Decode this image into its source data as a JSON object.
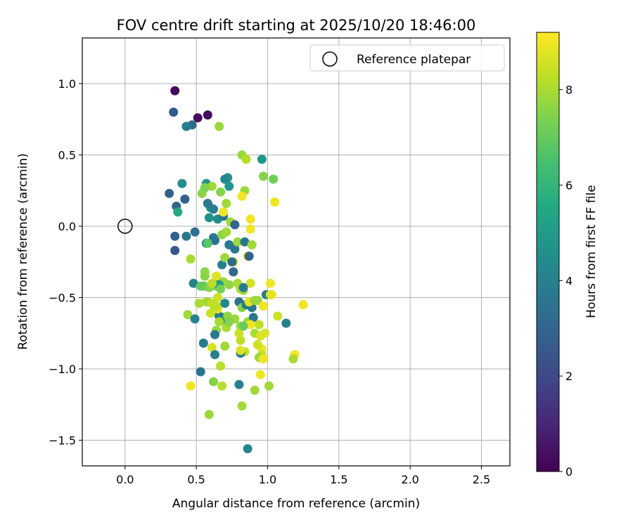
{
  "chart_data": {
    "type": "scatter",
    "title": "FOV centre drift starting at 2025/10/20 18:46:00",
    "xlabel": "Angular distance from reference (arcmin)",
    "ylabel": "Rotation from reference (arcmin)",
    "xlim": [
      -0.3,
      2.7
    ],
    "ylim": [
      -1.68,
      1.32
    ],
    "xticks": [
      0.0,
      0.5,
      1.0,
      1.5,
      2.0,
      2.5
    ],
    "xtick_labels": [
      "0.0",
      "0.5",
      "1.0",
      "1.5",
      "2.0",
      "2.5"
    ],
    "yticks": [
      1.0,
      0.5,
      0.0,
      -0.5,
      -1.0,
      -1.5
    ],
    "ytick_labels": [
      "1.0",
      "0.5",
      "0.0",
      "−0.5",
      "−1.0",
      "−1.5"
    ],
    "grid": true,
    "legend": {
      "position": "top-right",
      "entries": [
        "Reference platepar"
      ]
    },
    "reference_point": {
      "label": "Reference platepar",
      "x": 0.0,
      "y": 0.0
    },
    "colorbar": {
      "label": "Hours from first FF file",
      "colormap": "viridis",
      "range": [
        0,
        9.2
      ],
      "ticks": [
        0,
        2,
        4,
        6,
        8
      ],
      "tick_labels": [
        "0",
        "2",
        "4",
        "6",
        "8"
      ]
    },
    "series": [
      {
        "name": "FOV centre",
        "x": [
          0.35,
          0.58,
          0.51,
          0.34,
          0.47,
          0.43,
          0.66,
          0.96,
          0.82,
          0.85,
          0.57,
          0.97,
          1.04,
          0.72,
          0.7,
          0.73,
          0.84,
          0.67,
          0.4,
          0.61,
          0.54,
          0.56,
          0.31,
          0.42,
          0.6,
          0.71,
          0.36,
          0.58,
          0.74,
          0.37,
          0.62,
          0.59,
          0.65,
          0.69,
          0.69,
          0.77,
          1.05,
          0.82,
          0.88,
          0.88,
          0.35,
          0.43,
          0.49,
          0.62,
          0.63,
          0.68,
          0.71,
          0.73,
          0.77,
          0.79,
          0.84,
          0.86,
          0.87,
          0.89,
          0.35,
          0.46,
          0.57,
          0.68,
          0.58,
          0.76,
          0.7,
          0.75,
          0.56,
          0.6,
          0.64,
          0.66,
          0.69,
          0.55,
          0.48,
          0.53,
          0.59,
          0.66,
          0.67,
          0.73,
          0.76,
          0.79,
          0.83,
          0.88,
          0.81,
          0.83,
          1.02,
          0.57,
          0.65,
          0.58,
          0.62,
          0.7,
          0.8,
          0.82,
          0.85,
          0.89,
          0.93,
          0.97,
          0.99,
          1.03,
          0.52,
          0.44,
          0.49,
          0.69,
          0.66,
          0.7,
          0.72,
          0.66,
          0.64,
          0.86,
          0.9,
          0.94,
          0.81,
          0.88,
          1.13,
          1.07,
          0.55,
          0.63,
          0.71,
          0.81,
          0.91,
          0.95,
          0.98,
          0.96,
          0.93,
          1.19,
          1.18,
          0.7,
          0.53,
          0.84,
          0.81,
          0.67,
          0.96,
          0.46,
          0.62,
          0.68,
          0.8,
          0.91,
          1.01,
          0.59,
          0.82,
          0.86,
          1.25,
          1.02,
          0.8,
          0.65,
          0.61,
          0.64,
          0.87,
          0.91,
          0.83,
          0.98,
          0.77,
          0.73,
          0.81,
          0.61,
          0.63,
          0.6,
          0.64,
          0.61,
          0.56,
          0.94,
          0.97,
          0.95
        ],
        "y": [
          0.95,
          0.78,
          0.76,
          0.8,
          0.71,
          0.7,
          0.7,
          0.47,
          0.5,
          0.47,
          0.3,
          0.35,
          0.33,
          0.34,
          0.33,
          0.28,
          0.25,
          0.24,
          0.3,
          0.28,
          0.23,
          0.27,
          0.23,
          0.19,
          0.13,
          0.16,
          0.14,
          0.16,
          0.03,
          0.1,
          0.12,
          0.06,
          0.05,
          0.07,
          0.1,
          0.01,
          0.17,
          0.21,
          0.05,
          -0.02,
          -0.07,
          -0.07,
          -0.04,
          -0.08,
          -0.1,
          -0.06,
          -0.04,
          -0.13,
          -0.16,
          -0.11,
          -0.11,
          -0.21,
          -0.21,
          -0.13,
          -0.17,
          -0.23,
          -0.12,
          -0.27,
          -0.12,
          -0.25,
          -0.22,
          -0.25,
          -0.35,
          -0.41,
          -0.42,
          -0.39,
          -0.39,
          -0.42,
          -0.4,
          -0.42,
          -0.43,
          -0.41,
          -0.44,
          -0.41,
          -0.32,
          -0.4,
          -0.45,
          -0.4,
          -0.44,
          -0.43,
          -0.4,
          -0.53,
          -0.5,
          -0.53,
          -0.6,
          -0.54,
          -0.53,
          -0.57,
          -0.55,
          -0.57,
          -0.52,
          -0.56,
          -0.48,
          -0.48,
          -0.54,
          -0.62,
          -0.65,
          -0.64,
          -0.63,
          -0.66,
          -0.63,
          -0.67,
          -0.73,
          -0.67,
          -0.64,
          -0.69,
          -0.7,
          -0.69,
          -0.68,
          -0.63,
          -0.82,
          -0.76,
          -0.71,
          -0.8,
          -0.75,
          -0.77,
          -0.75,
          -0.86,
          -0.83,
          -0.9,
          -0.93,
          -0.84,
          -1.02,
          -0.88,
          -0.89,
          -0.98,
          -0.9,
          -1.12,
          -1.09,
          -1.12,
          -1.11,
          -1.15,
          -1.12,
          -1.32,
          -1.26,
          -1.56,
          -0.55,
          -0.48,
          -0.75,
          -0.58,
          -0.54,
          -0.56,
          -0.53,
          -0.52,
          -0.7,
          -0.75,
          -0.65,
          -0.67,
          -0.87,
          -0.85,
          -0.9,
          -0.61,
          -0.35,
          -0.4,
          -0.32,
          -0.92,
          -0.93,
          -1.04
        ],
        "hours": [
          0.2,
          0.3,
          0.3,
          2.6,
          3.2,
          3.8,
          7.8,
          4.8,
          7.8,
          8.2,
          4.6,
          7.5,
          7.2,
          4.6,
          4.2,
          4.8,
          7.8,
          7.5,
          4.4,
          7.9,
          7.6,
          7.4,
          2.9,
          2.7,
          5.0,
          7.9,
          3.0,
          3.7,
          7.9,
          5.6,
          3.8,
          4.6,
          4.4,
          3.6,
          9.0,
          3.0,
          9.0,
          9.0,
          9.0,
          9.0,
          2.8,
          3.6,
          3.3,
          3.8,
          3.5,
          7.6,
          7.9,
          3.7,
          3.6,
          7.8,
          3.6,
          9.0,
          2.9,
          7.9,
          2.5,
          8.0,
          4.2,
          3.9,
          6.8,
          8.5,
          7.8,
          3.2,
          7.5,
          8.6,
          7.2,
          3.4,
          7.8,
          6.8,
          4.0,
          7.0,
          7.5,
          5.0,
          7.3,
          7.7,
          3.1,
          8.0,
          7.8,
          8.6,
          8.0,
          3.7,
          9.0,
          8.1,
          8.5,
          7.9,
          7.5,
          4.2,
          3.4,
          7.5,
          3.8,
          3.6,
          7.8,
          9.0,
          3.7,
          9.0,
          8.0,
          7.9,
          4.0,
          3.5,
          3.9,
          4.6,
          7.7,
          8.0,
          7.7,
          7.9,
          3.6,
          8.3,
          7.8,
          9.0,
          4.0,
          8.5,
          3.7,
          3.6,
          8.0,
          8.3,
          8.0,
          8.7,
          8.0,
          9.0,
          8.5,
          9.0,
          8.0,
          7.9,
          3.5,
          8.4,
          3.9,
          8.2,
          8.4,
          9.0,
          7.5,
          8.2,
          4.0,
          7.9,
          7.9,
          7.8,
          7.9,
          4.2,
          9.0,
          8.8,
          8.5,
          8.8,
          8.3,
          8.3,
          8.8,
          7.8,
          7.0,
          8.7,
          7.8,
          7.5,
          8.7,
          8.7,
          4.0,
          8.5,
          8.7,
          8.3,
          7.6,
          7.9,
          9.0,
          9.0
        ]
      }
    ]
  }
}
